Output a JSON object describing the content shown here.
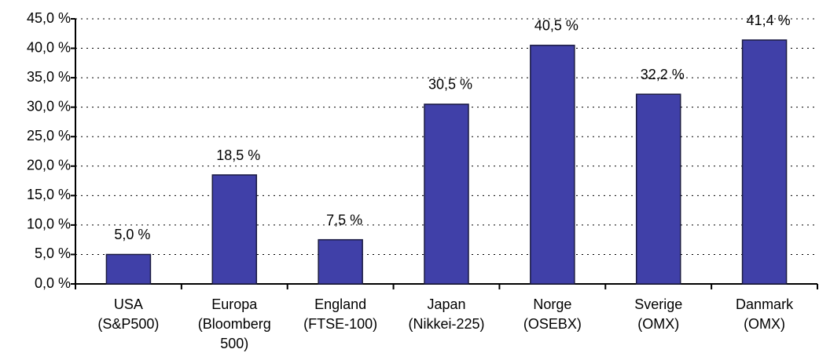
{
  "chart_data": {
    "type": "bar",
    "categories": [
      [
        "USA",
        "(S&P500)"
      ],
      [
        "Europa",
        "(Bloomberg",
        "500)"
      ],
      [
        "England",
        "(FTSE-100)"
      ],
      [
        "Japan",
        "(Nikkei-225)"
      ],
      [
        "Norge",
        "(OSEBX)"
      ],
      [
        "Sverige",
        "(OMX)"
      ],
      [
        "Danmark",
        "(OMX)"
      ]
    ],
    "values": [
      5.0,
      18.5,
      7.5,
      30.5,
      40.5,
      32.2,
      41.4
    ],
    "value_labels": [
      "5,0 %",
      "18,5 %",
      "7,5 %",
      "30,5 %",
      "40,5 %",
      "32,2 %",
      "41,4 %"
    ],
    "color": "#4040a8",
    "ylim": [
      0,
      45
    ],
    "yticks": [
      {
        "value": 0,
        "label": "0,0 %"
      },
      {
        "value": 5,
        "label": "5,0 %"
      },
      {
        "value": 10,
        "label": "10,0 %"
      },
      {
        "value": 15,
        "label": "15,0 %"
      },
      {
        "value": 20,
        "label": "20,0 %"
      },
      {
        "value": 25,
        "label": "25,0 %"
      },
      {
        "value": 30,
        "label": "30,0 %"
      },
      {
        "value": 35,
        "label": "35,0 %"
      },
      {
        "value": 40,
        "label": "40,0 %"
      },
      {
        "value": 45,
        "label": "45,0 %"
      }
    ],
    "grid": true
  }
}
